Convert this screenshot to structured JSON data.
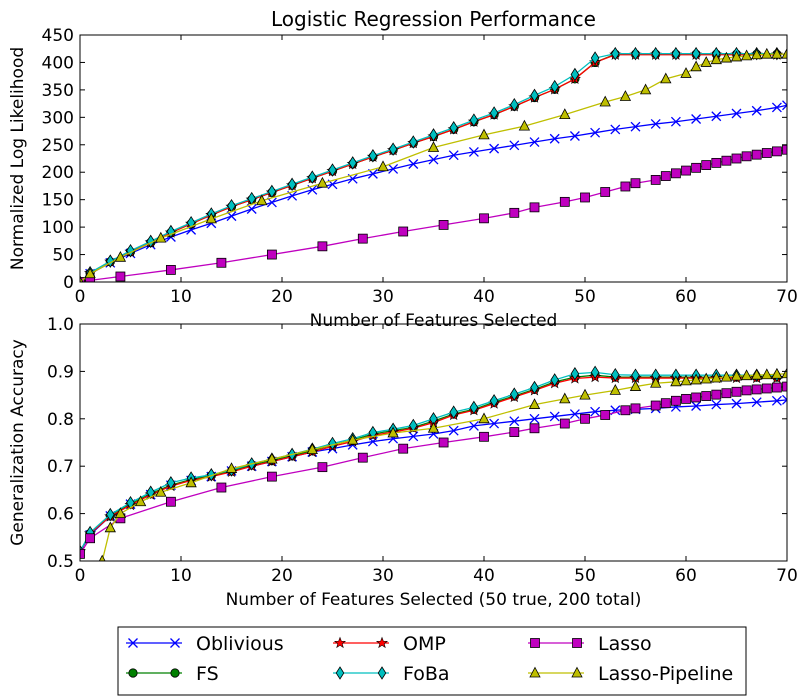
{
  "chart_data": [
    {
      "type": "line",
      "title": "Logistic Regression Performance",
      "xlabel": "Number of Features Selected",
      "ylabel": "Normalized Log Likelihood",
      "xlim": [
        0,
        70
      ],
      "ylim": [
        0,
        450
      ],
      "xticks": [
        0,
        10,
        20,
        30,
        40,
        50,
        60,
        70
      ],
      "yticks": [
        0,
        50,
        100,
        150,
        200,
        250,
        300,
        350,
        400,
        450
      ],
      "grid": false,
      "series": [
        {
          "name": "Oblivious",
          "color": "#0000ff",
          "marker": "x",
          "x": [
            0,
            1,
            3,
            5,
            7,
            9,
            11,
            13,
            15,
            17,
            19,
            21,
            23,
            25,
            27,
            29,
            31,
            33,
            35,
            37,
            39,
            41,
            43,
            45,
            47,
            49,
            51,
            53,
            55,
            57,
            59,
            61,
            63,
            65,
            67,
            69,
            70
          ],
          "y": [
            0,
            15,
            35,
            52,
            68,
            82,
            95,
            107,
            120,
            133,
            145,
            157,
            168,
            178,
            188,
            197,
            206,
            215,
            223,
            231,
            237,
            243,
            249,
            255,
            261,
            266,
            272,
            278,
            283,
            288,
            292,
            297,
            302,
            307,
            312,
            318,
            322
          ]
        },
        {
          "name": "FS",
          "color": "#008000",
          "marker": "o",
          "x": [
            0,
            1,
            3,
            5,
            7,
            9,
            11,
            13,
            15,
            17,
            19,
            21,
            23,
            25,
            27,
            29,
            31,
            33,
            35,
            37,
            39,
            41,
            43,
            45,
            47,
            49,
            51,
            53,
            55,
            57,
            59,
            61,
            63,
            65,
            67,
            69
          ],
          "y": [
            0,
            16,
            37,
            55,
            72,
            90,
            106,
            122,
            137,
            150,
            163,
            176,
            189,
            202,
            215,
            228,
            240,
            253,
            265,
            278,
            292,
            305,
            320,
            336,
            351,
            370,
            400,
            415,
            415,
            415,
            415,
            415,
            415,
            415,
            415,
            415
          ]
        },
        {
          "name": "OMP",
          "color": "#ff0000",
          "marker": "*",
          "x": [
            0,
            1,
            3,
            5,
            7,
            9,
            11,
            13,
            15,
            17,
            19,
            21,
            23,
            25,
            27,
            29,
            31,
            33,
            35,
            37,
            39,
            41,
            43,
            45,
            47,
            49,
            51,
            53,
            55,
            57,
            59,
            61,
            63,
            65,
            67,
            69
          ],
          "y": [
            0,
            16,
            37,
            55,
            72,
            90,
            106,
            122,
            137,
            150,
            163,
            176,
            189,
            202,
            215,
            228,
            240,
            253,
            265,
            278,
            292,
            305,
            320,
            336,
            351,
            370,
            400,
            414,
            414,
            414,
            414,
            414,
            414,
            414,
            414,
            414
          ]
        },
        {
          "name": "FoBa",
          "color": "#00bfbf",
          "marker": "d",
          "x": [
            0,
            1,
            3,
            5,
            7,
            9,
            11,
            13,
            15,
            17,
            19,
            21,
            23,
            25,
            27,
            29,
            31,
            33,
            35,
            37,
            39,
            41,
            43,
            45,
            47,
            49,
            51,
            53,
            55,
            57,
            59,
            61,
            63,
            65,
            67,
            69
          ],
          "y": [
            0,
            17,
            38,
            57,
            74,
            92,
            108,
            124,
            139,
            152,
            165,
            178,
            191,
            204,
            217,
            230,
            242,
            255,
            268,
            281,
            295,
            308,
            323,
            340,
            356,
            378,
            408,
            416,
            416,
            416,
            416,
            416,
            416,
            416,
            416,
            416
          ]
        },
        {
          "name": "Lasso",
          "color": "#bf00bf",
          "marker": "s",
          "x": [
            0,
            1,
            4,
            9,
            14,
            19,
            24,
            28,
            32,
            36,
            40,
            43,
            45,
            48,
            50,
            52,
            54,
            55,
            57,
            58,
            59,
            60,
            61,
            62,
            63,
            64,
            65,
            66,
            67,
            68,
            69,
            70
          ],
          "y": [
            0,
            3,
            10,
            22,
            35,
            50,
            65,
            79,
            92,
            104,
            116,
            126,
            136,
            146,
            154,
            164,
            174,
            180,
            186,
            193,
            198,
            203,
            208,
            213,
            217,
            221,
            225,
            229,
            232,
            235,
            238,
            241
          ]
        },
        {
          "name": "Lasso-Pipeline",
          "color": "#bfbf00",
          "marker": "^",
          "x": [
            0,
            1,
            4,
            8,
            13,
            18,
            24,
            30,
            35,
            40,
            44,
            48,
            52,
            54,
            56,
            58,
            60,
            61,
            62,
            63,
            64,
            65,
            66,
            67,
            68,
            69,
            70
          ],
          "y": [
            0,
            15,
            45,
            80,
            115,
            148,
            180,
            210,
            245,
            268,
            284,
            305,
            328,
            338,
            350,
            370,
            380,
            392,
            400,
            405,
            408,
            410,
            412,
            414,
            415,
            415,
            415
          ]
        }
      ]
    },
    {
      "type": "line",
      "title": "",
      "xlabel": "Number of Features Selected (50 true, 200 total)",
      "ylabel": "Generalization Accuracy",
      "xlim": [
        0,
        70
      ],
      "ylim": [
        0.5,
        1.0
      ],
      "xticks": [
        0,
        10,
        20,
        30,
        40,
        50,
        60,
        70
      ],
      "yticks": [
        0.5,
        0.6,
        0.7,
        0.8,
        0.9,
        1.0
      ],
      "grid": false,
      "series": [
        {
          "name": "Oblivious",
          "color": "#0000ff",
          "marker": "x",
          "x": [
            0,
            1,
            3,
            5,
            7,
            9,
            11,
            13,
            15,
            17,
            19,
            21,
            23,
            25,
            27,
            29,
            31,
            33,
            35,
            37,
            39,
            41,
            43,
            45,
            47,
            49,
            51,
            53,
            55,
            57,
            59,
            61,
            63,
            65,
            67,
            69,
            70
          ],
          "y": [
            0.52,
            0.555,
            0.595,
            0.62,
            0.64,
            0.66,
            0.67,
            0.678,
            0.69,
            0.7,
            0.71,
            0.72,
            0.73,
            0.737,
            0.745,
            0.752,
            0.758,
            0.763,
            0.768,
            0.775,
            0.785,
            0.79,
            0.795,
            0.8,
            0.805,
            0.81,
            0.815,
            0.818,
            0.82,
            0.822,
            0.825,
            0.827,
            0.83,
            0.832,
            0.835,
            0.838,
            0.84
          ]
        },
        {
          "name": "FS",
          "color": "#008000",
          "marker": "o",
          "x": [
            0,
            1,
            3,
            5,
            7,
            9,
            11,
            13,
            15,
            17,
            19,
            21,
            23,
            25,
            27,
            29,
            31,
            33,
            35,
            37,
            39,
            41,
            43,
            45,
            47,
            49,
            51,
            53,
            55,
            57,
            59,
            61,
            63,
            65,
            67,
            69
          ],
          "y": [
            0.52,
            0.558,
            0.595,
            0.62,
            0.642,
            0.66,
            0.672,
            0.68,
            0.69,
            0.703,
            0.712,
            0.722,
            0.733,
            0.745,
            0.755,
            0.768,
            0.775,
            0.782,
            0.795,
            0.81,
            0.82,
            0.835,
            0.848,
            0.862,
            0.878,
            0.888,
            0.892,
            0.888,
            0.888,
            0.888,
            0.888,
            0.888,
            0.888,
            0.888,
            0.888,
            0.888
          ]
        },
        {
          "name": "OMP",
          "color": "#ff0000",
          "marker": "*",
          "x": [
            0,
            1,
            3,
            5,
            7,
            9,
            11,
            13,
            15,
            17,
            19,
            21,
            23,
            25,
            27,
            29,
            31,
            33,
            35,
            37,
            39,
            41,
            43,
            45,
            47,
            49,
            51,
            53,
            55,
            57,
            59,
            61,
            63,
            65,
            67,
            69
          ],
          "y": [
            0.52,
            0.558,
            0.594,
            0.618,
            0.64,
            0.658,
            0.67,
            0.678,
            0.688,
            0.7,
            0.71,
            0.72,
            0.73,
            0.742,
            0.752,
            0.765,
            0.772,
            0.78,
            0.792,
            0.808,
            0.818,
            0.832,
            0.846,
            0.86,
            0.875,
            0.885,
            0.888,
            0.886,
            0.886,
            0.886,
            0.886,
            0.886,
            0.886,
            0.886,
            0.886,
            0.886
          ]
        },
        {
          "name": "FoBa",
          "color": "#00bfbf",
          "marker": "d",
          "x": [
            0,
            1,
            3,
            5,
            7,
            9,
            11,
            13,
            15,
            17,
            19,
            21,
            23,
            25,
            27,
            29,
            31,
            33,
            35,
            37,
            39,
            41,
            43,
            45,
            47,
            49,
            51,
            53,
            55,
            57,
            59,
            61,
            63,
            65,
            67,
            69
          ],
          "y": [
            0.52,
            0.56,
            0.598,
            0.623,
            0.645,
            0.665,
            0.675,
            0.682,
            0.692,
            0.705,
            0.715,
            0.725,
            0.736,
            0.748,
            0.758,
            0.771,
            0.778,
            0.786,
            0.8,
            0.814,
            0.824,
            0.838,
            0.852,
            0.866,
            0.882,
            0.895,
            0.898,
            0.893,
            0.892,
            0.892,
            0.892,
            0.892,
            0.892,
            0.892,
            0.892,
            0.892
          ]
        },
        {
          "name": "Lasso",
          "color": "#bf00bf",
          "marker": "s",
          "x": [
            0,
            1,
            4,
            9,
            14,
            19,
            24,
            28,
            32,
            36,
            40,
            43,
            45,
            48,
            50,
            52,
            54,
            55,
            57,
            58,
            59,
            60,
            61,
            62,
            63,
            64,
            65,
            66,
            67,
            68,
            69,
            70
          ],
          "y": [
            0.515,
            0.548,
            0.59,
            0.625,
            0.655,
            0.678,
            0.698,
            0.718,
            0.737,
            0.75,
            0.762,
            0.772,
            0.78,
            0.79,
            0.8,
            0.808,
            0.818,
            0.822,
            0.828,
            0.833,
            0.838,
            0.842,
            0.845,
            0.848,
            0.851,
            0.854,
            0.857,
            0.86,
            0.862,
            0.864,
            0.866,
            0.868
          ]
        },
        {
          "name": "Lasso-Pipeline",
          "color": "#bfbf00",
          "marker": "^",
          "x": [
            2.2,
            3,
            4,
            6,
            8,
            11,
            15,
            19,
            23,
            27,
            31,
            35,
            40,
            45,
            48,
            50,
            53,
            55,
            57,
            59,
            60,
            61,
            62,
            63,
            64,
            65,
            66,
            67,
            68,
            69,
            70
          ],
          "y": [
            0.5,
            0.57,
            0.6,
            0.625,
            0.645,
            0.665,
            0.695,
            0.715,
            0.735,
            0.755,
            0.77,
            0.78,
            0.8,
            0.83,
            0.842,
            0.85,
            0.86,
            0.868,
            0.875,
            0.878,
            0.88,
            0.882,
            0.884,
            0.886,
            0.888,
            0.89,
            0.891,
            0.892,
            0.893,
            0.894,
            0.895
          ]
        }
      ]
    }
  ],
  "legend": {
    "placement": "bottom-center",
    "entries": [
      {
        "label": "Oblivious",
        "color": "#0000ff",
        "marker": "x"
      },
      {
        "label": "FS",
        "color": "#008000",
        "marker": "o"
      },
      {
        "label": "OMP",
        "color": "#ff0000",
        "marker": "*"
      },
      {
        "label": "FoBa",
        "color": "#00bfbf",
        "marker": "d"
      },
      {
        "label": "Lasso",
        "color": "#bf00bf",
        "marker": "s"
      },
      {
        "label": "Lasso-Pipeline",
        "color": "#bfbf00",
        "marker": "^"
      }
    ]
  }
}
